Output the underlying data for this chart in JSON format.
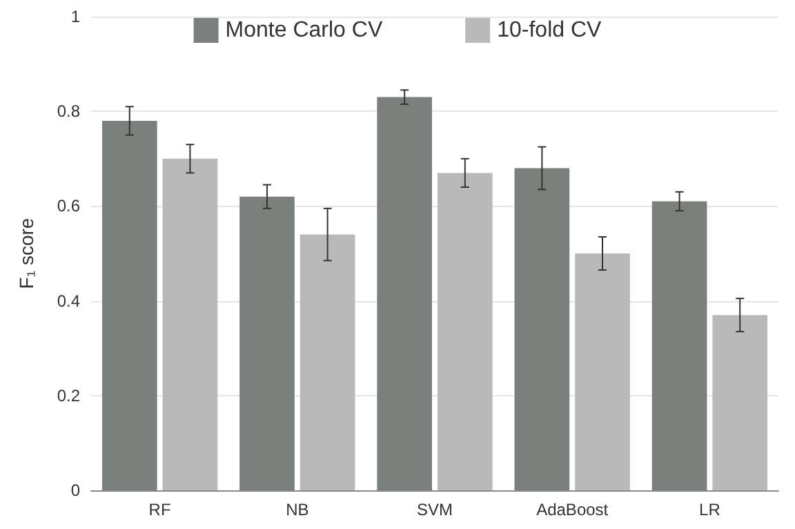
{
  "chart_data": {
    "type": "bar",
    "ylabel": "F₁ score",
    "categories": [
      "RF",
      "NB",
      "SVM",
      "AdaBoost",
      "LR"
    ],
    "series": [
      {
        "name": "Monte Carlo CV",
        "color": "#7c807d",
        "values": [
          0.78,
          0.62,
          0.83,
          0.68,
          0.61
        ],
        "errors": [
          0.03,
          0.025,
          0.015,
          0.045,
          0.02
        ]
      },
      {
        "name": "10-fold CV",
        "color": "#b9b9b9",
        "values": [
          0.7,
          0.54,
          0.67,
          0.5,
          0.37
        ],
        "errors": [
          0.03,
          0.055,
          0.03,
          0.035,
          0.035
        ]
      }
    ],
    "ylim": [
      0,
      1
    ],
    "yticks": [
      0,
      0.2,
      0.4,
      0.6,
      0.8,
      1
    ],
    "grid": "y",
    "legend": "top"
  }
}
